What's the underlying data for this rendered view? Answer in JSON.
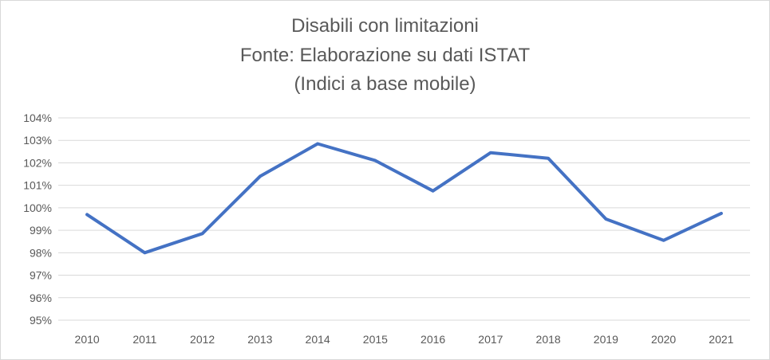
{
  "chart_data": {
    "type": "line",
    "title_lines": [
      "Disabili con limitazioni",
      "Fonte: Elaborazione su dati ISTAT",
      "(Indici a base mobile)"
    ],
    "categories": [
      "2010",
      "2011",
      "2012",
      "2013",
      "2014",
      "2015",
      "2016",
      "2017",
      "2018",
      "2019",
      "2020",
      "2021"
    ],
    "series": [
      {
        "values": [
          99.7,
          98.0,
          98.85,
          101.4,
          102.85,
          102.1,
          100.75,
          102.45,
          102.2,
          99.5,
          98.55,
          99.75
        ],
        "color": "#4472c4"
      }
    ],
    "ylim": [
      95,
      104
    ],
    "yticks": [
      "95%",
      "96%",
      "97%",
      "98%",
      "99%",
      "100%",
      "101%",
      "102%",
      "103%",
      "104%"
    ],
    "grid": true,
    "legend": "none"
  },
  "colors": {
    "line": "#4472c4",
    "grid": "#d9d9d9",
    "text": "#595959"
  }
}
